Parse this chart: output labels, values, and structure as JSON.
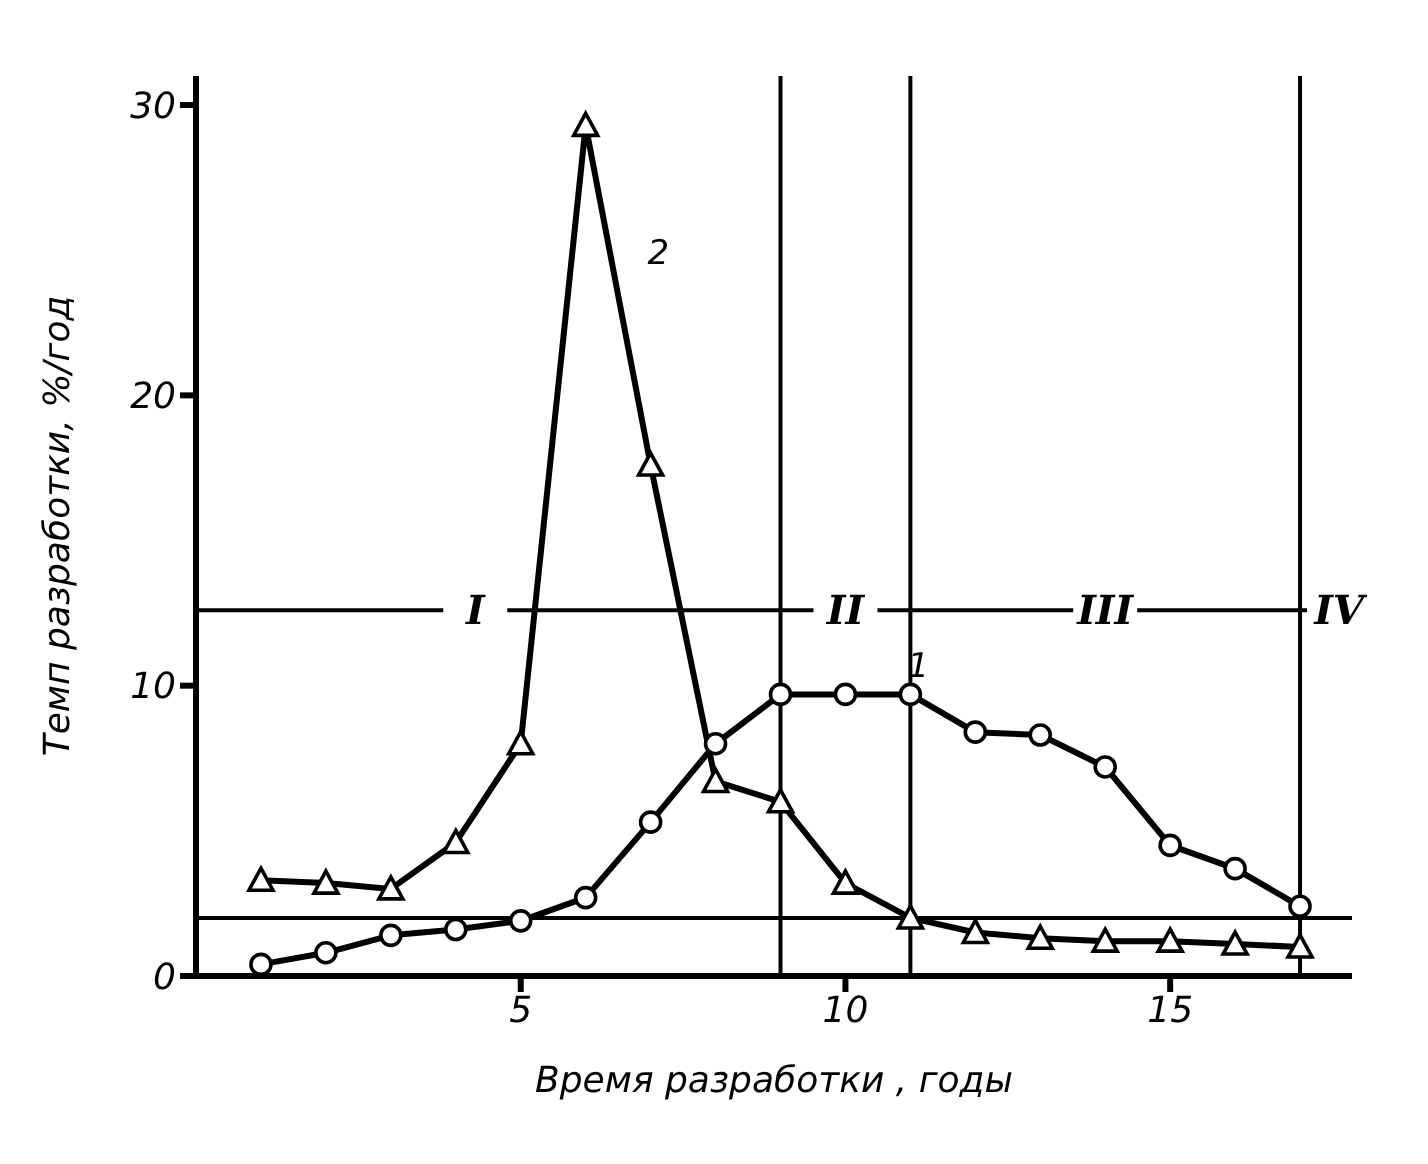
{
  "chart_data": {
    "type": "line",
    "xlabel": "Время разработки , годы",
    "ylabel": "Темп разработки, %/год",
    "x": [
      1,
      2,
      3,
      4,
      5,
      6,
      7,
      8,
      9,
      10,
      11,
      12,
      13,
      14,
      15,
      16,
      17
    ],
    "series": [
      {
        "name": "1",
        "color": "#000000",
        "marker": "circle",
        "values": [
          0.4,
          0.8,
          1.4,
          1.6,
          1.9,
          2.7,
          5.3,
          8.0,
          9.7,
          9.7,
          9.7,
          8.4,
          8.3,
          7.2,
          4.5,
          3.7,
          2.4
        ]
      },
      {
        "name": "2",
        "color": "#000000",
        "marker": "triangle",
        "values": [
          3.3,
          3.2,
          3.0,
          4.6,
          8.0,
          29.3,
          17.6,
          6.7,
          6.0,
          3.2,
          2.0,
          1.5,
          1.3,
          1.2,
          1.2,
          1.1,
          1.0
        ]
      }
    ],
    "xlim": [
      0,
      17.8
    ],
    "xticks": [
      5,
      10,
      15
    ],
    "ylim": [
      0,
      31
    ],
    "yticks": [
      0,
      10,
      20,
      30
    ],
    "ref_lines": [
      {
        "axis": "y",
        "value": 12.6
      },
      {
        "axis": "y",
        "value": 2.0
      },
      {
        "axis": "x",
        "value": 9
      },
      {
        "axis": "x",
        "value": 11
      },
      {
        "axis": "x",
        "value": 17
      }
    ],
    "annotations": [
      {
        "text": "I",
        "x": 4.3,
        "y": 12.6
      },
      {
        "text": "II",
        "x": 10,
        "y": 12.6
      },
      {
        "text": "III",
        "x": 14,
        "y": 12.6
      },
      {
        "text": "IV",
        "x": 17.6,
        "y": 12.6
      }
    ],
    "grid": false,
    "legend": false,
    "line_style": "solid"
  }
}
